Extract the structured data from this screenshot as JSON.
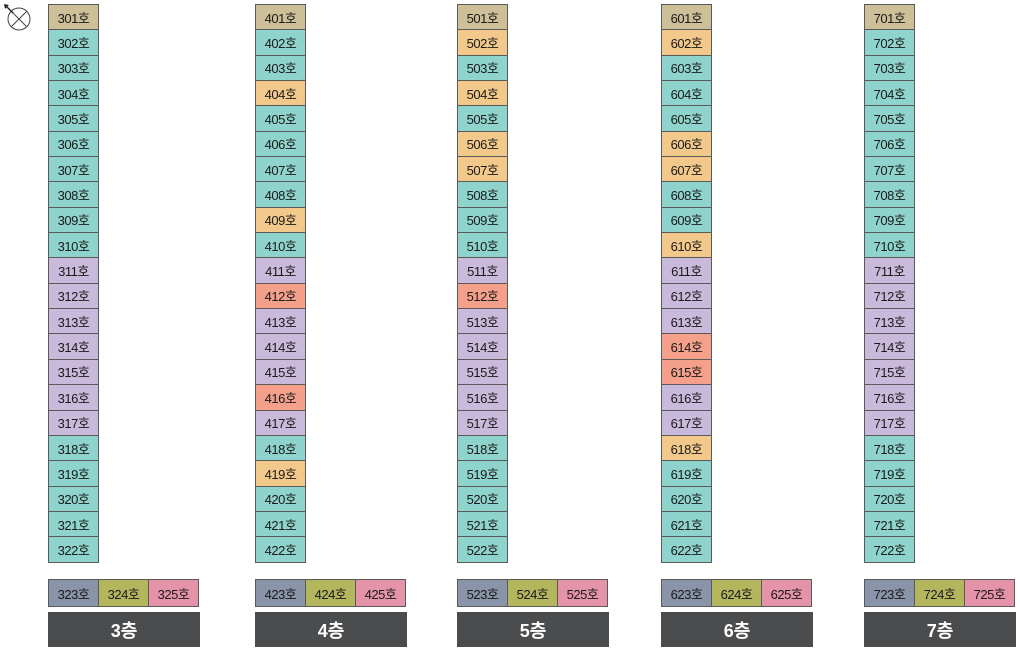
{
  "colors": {
    "tan": "#cdc098",
    "teal": "#8fd4cc",
    "orange": "#f2c98a",
    "lavender": "#c9badb",
    "salmon": "#f4a08a",
    "gray": "#8a94a8",
    "olive": "#b4b65e",
    "pink": "#e593a8",
    "floor_label_bg": "#4a4c4e"
  },
  "compass": {
    "icon": "compass-icon"
  },
  "floors": [
    {
      "label": "3층",
      "column": [
        {
          "name": "301호",
          "color": "tan"
        },
        {
          "name": "302호",
          "color": "teal"
        },
        {
          "name": "303호",
          "color": "teal"
        },
        {
          "name": "304호",
          "color": "teal"
        },
        {
          "name": "305호",
          "color": "teal"
        },
        {
          "name": "306호",
          "color": "teal"
        },
        {
          "name": "307호",
          "color": "teal"
        },
        {
          "name": "308호",
          "color": "teal"
        },
        {
          "name": "309호",
          "color": "teal"
        },
        {
          "name": "310호",
          "color": "teal"
        },
        {
          "name": "311호",
          "color": "lavender"
        },
        {
          "name": "312호",
          "color": "lavender"
        },
        {
          "name": "313호",
          "color": "lavender"
        },
        {
          "name": "314호",
          "color": "lavender"
        },
        {
          "name": "315호",
          "color": "lavender"
        },
        {
          "name": "316호",
          "color": "lavender"
        },
        {
          "name": "317호",
          "color": "lavender"
        },
        {
          "name": "318호",
          "color": "teal"
        },
        {
          "name": "319호",
          "color": "teal"
        },
        {
          "name": "320호",
          "color": "teal"
        },
        {
          "name": "321호",
          "color": "teal"
        },
        {
          "name": "322호",
          "color": "teal"
        }
      ],
      "bottom": [
        {
          "name": "323호",
          "color": "gray"
        },
        {
          "name": "324호",
          "color": "olive"
        },
        {
          "name": "325호",
          "color": "pink"
        }
      ]
    },
    {
      "label": "4층",
      "column": [
        {
          "name": "401호",
          "color": "tan"
        },
        {
          "name": "402호",
          "color": "teal"
        },
        {
          "name": "403호",
          "color": "teal"
        },
        {
          "name": "404호",
          "color": "orange"
        },
        {
          "name": "405호",
          "color": "teal"
        },
        {
          "name": "406호",
          "color": "teal"
        },
        {
          "name": "407호",
          "color": "teal"
        },
        {
          "name": "408호",
          "color": "teal"
        },
        {
          "name": "409호",
          "color": "orange"
        },
        {
          "name": "410호",
          "color": "teal"
        },
        {
          "name": "411호",
          "color": "lavender"
        },
        {
          "name": "412호",
          "color": "salmon"
        },
        {
          "name": "413호",
          "color": "lavender"
        },
        {
          "name": "414호",
          "color": "lavender"
        },
        {
          "name": "415호",
          "color": "lavender"
        },
        {
          "name": "416호",
          "color": "salmon"
        },
        {
          "name": "417호",
          "color": "lavender"
        },
        {
          "name": "418호",
          "color": "teal"
        },
        {
          "name": "419호",
          "color": "orange"
        },
        {
          "name": "420호",
          "color": "teal"
        },
        {
          "name": "421호",
          "color": "teal"
        },
        {
          "name": "422호",
          "color": "teal"
        }
      ],
      "bottom": [
        {
          "name": "423호",
          "color": "gray"
        },
        {
          "name": "424호",
          "color": "olive"
        },
        {
          "name": "425호",
          "color": "pink"
        }
      ]
    },
    {
      "label": "5층",
      "column": [
        {
          "name": "501호",
          "color": "tan"
        },
        {
          "name": "502호",
          "color": "orange"
        },
        {
          "name": "503호",
          "color": "teal"
        },
        {
          "name": "504호",
          "color": "orange"
        },
        {
          "name": "505호",
          "color": "teal"
        },
        {
          "name": "506호",
          "color": "orange"
        },
        {
          "name": "507호",
          "color": "orange"
        },
        {
          "name": "508호",
          "color": "teal"
        },
        {
          "name": "509호",
          "color": "teal"
        },
        {
          "name": "510호",
          "color": "teal"
        },
        {
          "name": "511호",
          "color": "lavender"
        },
        {
          "name": "512호",
          "color": "salmon"
        },
        {
          "name": "513호",
          "color": "lavender"
        },
        {
          "name": "514호",
          "color": "lavender"
        },
        {
          "name": "515호",
          "color": "lavender"
        },
        {
          "name": "516호",
          "color": "lavender"
        },
        {
          "name": "517호",
          "color": "lavender"
        },
        {
          "name": "518호",
          "color": "teal"
        },
        {
          "name": "519호",
          "color": "teal"
        },
        {
          "name": "520호",
          "color": "teal"
        },
        {
          "name": "521호",
          "color": "teal"
        },
        {
          "name": "522호",
          "color": "teal"
        }
      ],
      "bottom": [
        {
          "name": "523호",
          "color": "gray"
        },
        {
          "name": "524호",
          "color": "olive"
        },
        {
          "name": "525호",
          "color": "pink"
        }
      ]
    },
    {
      "label": "6층",
      "column": [
        {
          "name": "601호",
          "color": "tan"
        },
        {
          "name": "602호",
          "color": "orange"
        },
        {
          "name": "603호",
          "color": "teal"
        },
        {
          "name": "604호",
          "color": "teal"
        },
        {
          "name": "605호",
          "color": "teal"
        },
        {
          "name": "606호",
          "color": "orange"
        },
        {
          "name": "607호",
          "color": "orange"
        },
        {
          "name": "608호",
          "color": "teal"
        },
        {
          "name": "609호",
          "color": "teal"
        },
        {
          "name": "610호",
          "color": "orange"
        },
        {
          "name": "611호",
          "color": "lavender"
        },
        {
          "name": "612호",
          "color": "lavender"
        },
        {
          "name": "613호",
          "color": "lavender"
        },
        {
          "name": "614호",
          "color": "salmon"
        },
        {
          "name": "615호",
          "color": "salmon"
        },
        {
          "name": "616호",
          "color": "lavender"
        },
        {
          "name": "617호",
          "color": "lavender"
        },
        {
          "name": "618호",
          "color": "orange"
        },
        {
          "name": "619호",
          "color": "teal"
        },
        {
          "name": "620호",
          "color": "teal"
        },
        {
          "name": "621호",
          "color": "teal"
        },
        {
          "name": "622호",
          "color": "teal"
        }
      ],
      "bottom": [
        {
          "name": "623호",
          "color": "gray"
        },
        {
          "name": "624호",
          "color": "olive"
        },
        {
          "name": "625호",
          "color": "pink"
        }
      ]
    },
    {
      "label": "7층",
      "column": [
        {
          "name": "701호",
          "color": "tan"
        },
        {
          "name": "702호",
          "color": "teal"
        },
        {
          "name": "703호",
          "color": "teal"
        },
        {
          "name": "704호",
          "color": "teal"
        },
        {
          "name": "705호",
          "color": "teal"
        },
        {
          "name": "706호",
          "color": "teal"
        },
        {
          "name": "707호",
          "color": "teal"
        },
        {
          "name": "708호",
          "color": "teal"
        },
        {
          "name": "709호",
          "color": "teal"
        },
        {
          "name": "710호",
          "color": "teal"
        },
        {
          "name": "711호",
          "color": "lavender"
        },
        {
          "name": "712호",
          "color": "lavender"
        },
        {
          "name": "713호",
          "color": "lavender"
        },
        {
          "name": "714호",
          "color": "lavender"
        },
        {
          "name": "715호",
          "color": "lavender"
        },
        {
          "name": "716호",
          "color": "lavender"
        },
        {
          "name": "717호",
          "color": "lavender"
        },
        {
          "name": "718호",
          "color": "teal"
        },
        {
          "name": "719호",
          "color": "teal"
        },
        {
          "name": "720호",
          "color": "teal"
        },
        {
          "name": "721호",
          "color": "teal"
        },
        {
          "name": "722호",
          "color": "teal"
        }
      ],
      "bottom": [
        {
          "name": "723호",
          "color": "gray"
        },
        {
          "name": "724호",
          "color": "olive"
        },
        {
          "name": "725호",
          "color": "pink"
        }
      ]
    }
  ]
}
